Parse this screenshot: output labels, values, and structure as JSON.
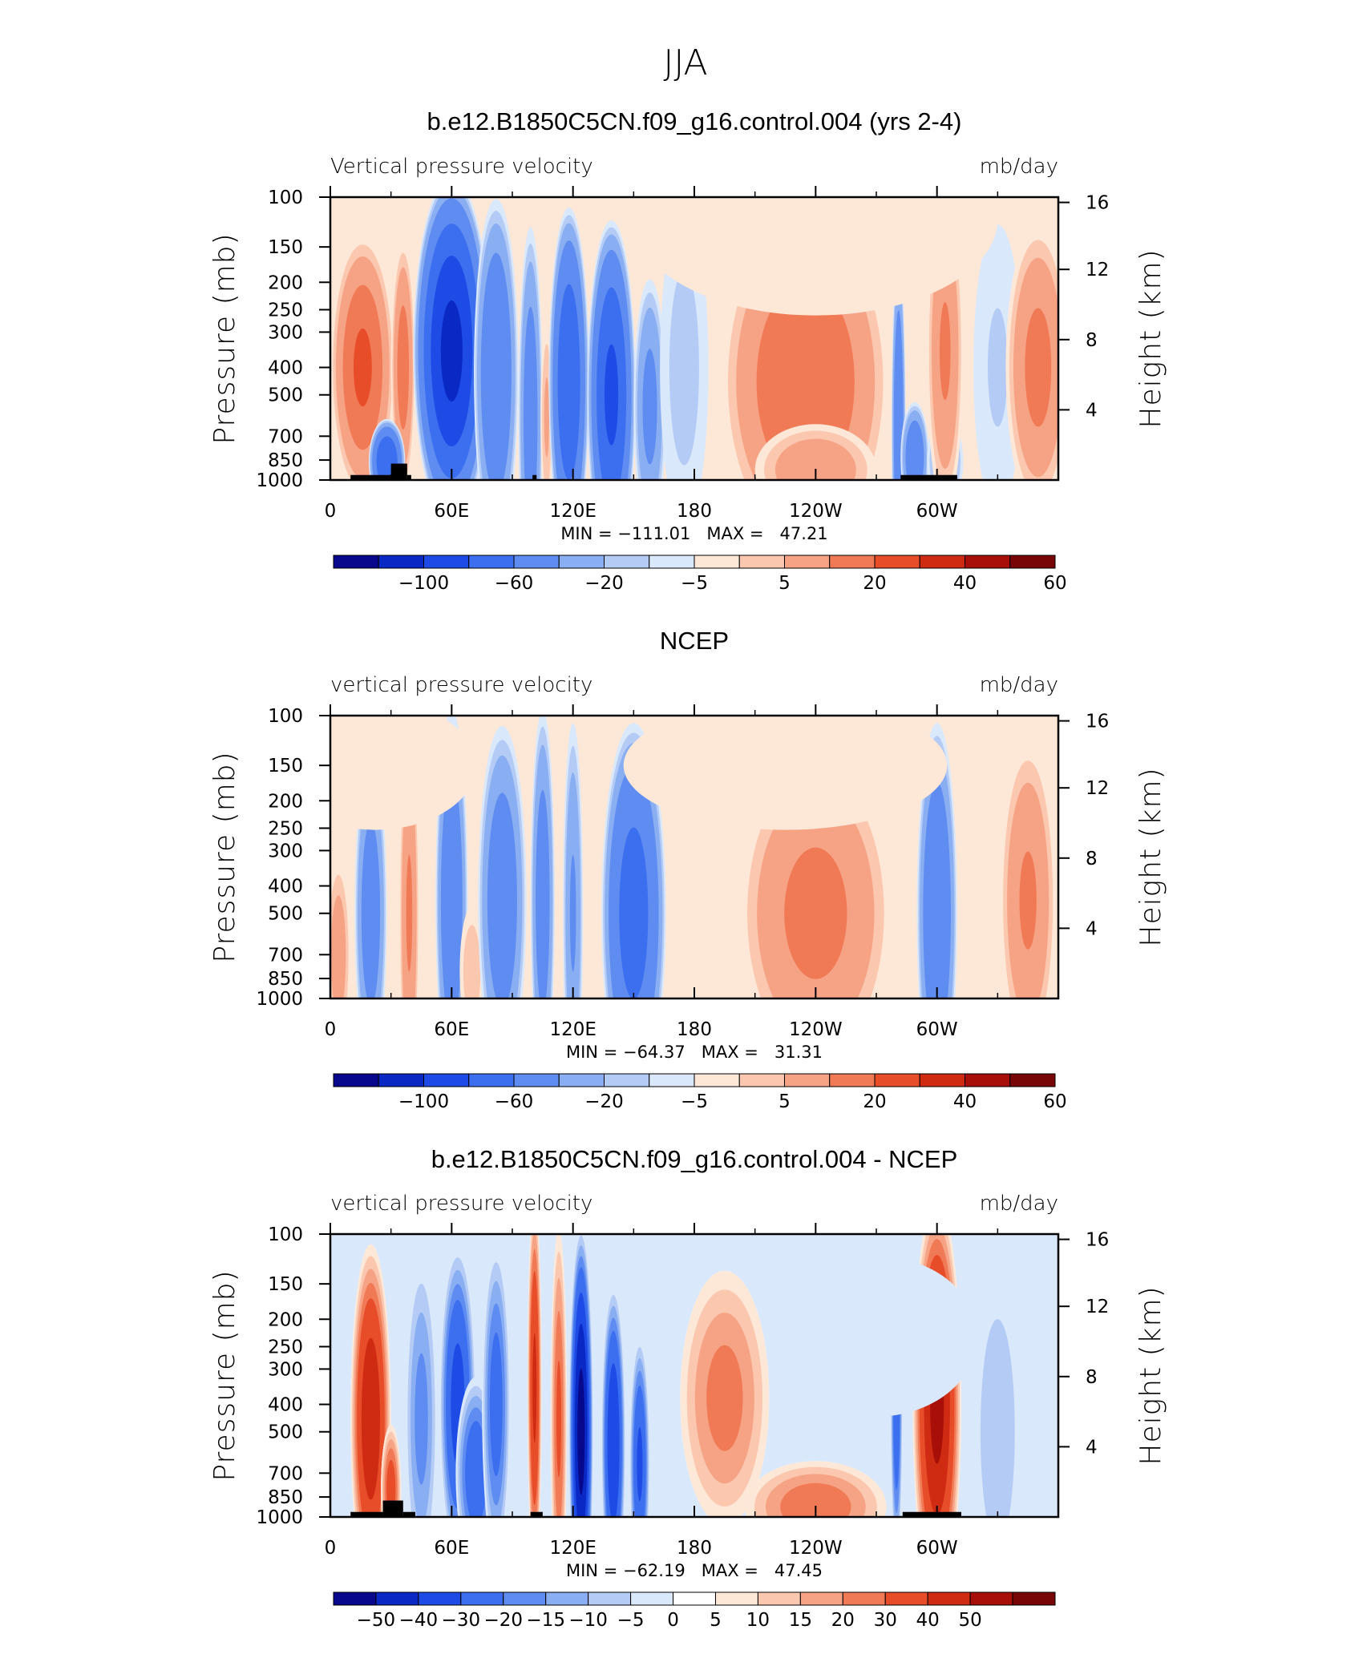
{
  "figure": {
    "title": "JJA",
    "colors": {
      "frame": "#000000",
      "background": "#ffffff",
      "topography": "#000000"
    }
  },
  "chart_data": [
    {
      "type": "heatmap",
      "title": "b.e12.B1850C5CN.f09_g16.control.004 (yrs 2-4)",
      "left_label": "Vertical pressure velocity",
      "right_label": "mb/day",
      "xlabel": "",
      "ylabel": "Pressure (mb)",
      "y2label": "Height (km)",
      "x_ticks": [
        "0",
        "60E",
        "120E",
        "180",
        "120W",
        "60W"
      ],
      "x_tick_lon": [
        0,
        60,
        120,
        180,
        240,
        300
      ],
      "xlim": [
        0,
        360
      ],
      "y_ticks": [
        "100",
        "150",
        "200",
        "250",
        "300",
        "400",
        "500",
        "700",
        "850",
        "1000"
      ],
      "y_tick_p": [
        100,
        150,
        200,
        250,
        300,
        400,
        500,
        700,
        850,
        1000
      ],
      "ylim": [
        1000,
        100
      ],
      "y2_ticks": [
        "4",
        "8",
        "12",
        "16"
      ],
      "y2_tick_km": [
        4,
        8,
        12,
        16
      ],
      "stats_text": "MIN = −111.01   MAX =   47.21",
      "min": -111.01,
      "max": 47.21,
      "levels": [
        -120,
        -100,
        -80,
        -60,
        -40,
        -20,
        -10,
        -5,
        0,
        5,
        10,
        20,
        30,
        40,
        50,
        60,
        70
      ],
      "cb_labels": [
        "−100",
        "−60",
        "−20",
        "−5",
        "5",
        "20",
        "40",
        "60"
      ],
      "cb_label_after_box": [
        1,
        3,
        5,
        7,
        9,
        11,
        13,
        15
      ],
      "topography": [
        [
          10,
          30,
          960
        ],
        [
          30,
          38,
          875
        ],
        [
          38,
          40,
          960
        ],
        [
          100,
          102,
          960
        ],
        [
          282,
          310,
          960
        ]
      ],
      "features": [
        {
          "lon": 16,
          "p": 400,
          "w": 16,
          "h": 4.2,
          "v": 32
        },
        {
          "lon": 36,
          "p": 400,
          "w": 6,
          "h": 4.0,
          "v": 26
        },
        {
          "lon": 28,
          "p": 860,
          "w": 9,
          "h": 1.3,
          "v": -60
        },
        {
          "lon": 60,
          "p": 350,
          "w": 19,
          "h": 5.5,
          "v": -85
        },
        {
          "lon": 82,
          "p": 420,
          "w": 11,
          "h": 5.5,
          "v": -38
        },
        {
          "lon": 99,
          "p": 600,
          "w": 6,
          "h": 6.0,
          "v": -30
        },
        {
          "lon": 107,
          "p": 600,
          "w": 3,
          "h": 3.0,
          "v": 12
        },
        {
          "lon": 118,
          "p": 450,
          "w": 10,
          "h": 5.5,
          "v": -58
        },
        {
          "lon": 139,
          "p": 500,
          "w": 12,
          "h": 5.5,
          "v": -64
        },
        {
          "lon": 158,
          "p": 550,
          "w": 8,
          "h": 4.0,
          "v": -25
        },
        {
          "lon": 175,
          "p": 400,
          "w": 12,
          "h": 5.0,
          "v": -8
        },
        {
          "lon": 235,
          "p": 450,
          "w": 42,
          "h": 5.5,
          "v": 30
        },
        {
          "lon": 240,
          "p": 920,
          "w": 30,
          "h": 1.4,
          "v": 18
        },
        {
          "lon": 281,
          "p": 650,
          "w": 3.5,
          "h": 5.5,
          "v": -36
        },
        {
          "lon": 289,
          "p": 830,
          "w": 7,
          "h": 1.7,
          "v": -35
        },
        {
          "lon": 304,
          "p": 860,
          "w": 9,
          "h": 1.4,
          "v": -18
        },
        {
          "lon": 304,
          "p": 350,
          "w": 9,
          "h": 5.0,
          "v": 22
        },
        {
          "lon": 330,
          "p": 400,
          "w": 12,
          "h": 4.5,
          "v": -6
        },
        {
          "lon": 350,
          "p": 400,
          "w": 16,
          "h": 4.5,
          "v": 24
        },
        {
          "lon": 240,
          "p": 120,
          "w": 90,
          "h": 3.0,
          "v": 4
        }
      ]
    },
    {
      "type": "heatmap",
      "title": "NCEP",
      "left_label": "vertical pressure velocity",
      "right_label": "mb/day",
      "xlabel": "",
      "ylabel": "Pressure (mb)",
      "y2label": "Height (km)",
      "x_ticks": [
        "0",
        "60E",
        "120E",
        "180",
        "120W",
        "60W"
      ],
      "x_tick_lon": [
        0,
        60,
        120,
        180,
        240,
        300
      ],
      "xlim": [
        0,
        360
      ],
      "y_ticks": [
        "100",
        "150",
        "200",
        "250",
        "300",
        "400",
        "500",
        "700",
        "850",
        "1000"
      ],
      "y_tick_p": [
        100,
        150,
        200,
        250,
        300,
        400,
        500,
        700,
        850,
        1000
      ],
      "ylim": [
        1000,
        100
      ],
      "y2_ticks": [
        "4",
        "8",
        "12",
        "16"
      ],
      "y2_tick_km": [
        4,
        8,
        12,
        16
      ],
      "stats_text": "MIN = −64.37   MAX =   31.31",
      "min": -64.37,
      "max": 31.31,
      "levels": [
        -120,
        -100,
        -80,
        -60,
        -40,
        -20,
        -10,
        -5,
        0,
        5,
        10,
        20,
        30,
        40,
        50,
        60,
        70
      ],
      "cb_labels": [
        "−100",
        "−60",
        "−20",
        "−5",
        "5",
        "20",
        "40",
        "60"
      ],
      "cb_label_after_box": [
        1,
        3,
        5,
        7,
        9,
        11,
        13,
        15
      ],
      "topography": [],
      "features": [
        {
          "lon": 4,
          "p": 700,
          "w": 6,
          "h": 3.0,
          "v": 16
        },
        {
          "lon": 20,
          "p": 500,
          "w": 8,
          "h": 5.0,
          "v": -30
        },
        {
          "lon": 39,
          "p": 500,
          "w": 5,
          "h": 6.0,
          "v": 22
        },
        {
          "lon": 60,
          "p": 450,
          "w": 8,
          "h": 6.0,
          "v": -36
        },
        {
          "lon": 70,
          "p": 800,
          "w": 6,
          "h": 2.0,
          "v": 10
        },
        {
          "lon": 85,
          "p": 450,
          "w": 12,
          "h": 5.5,
          "v": -32
        },
        {
          "lon": 105,
          "p": 450,
          "w": 6,
          "h": 6.0,
          "v": -30
        },
        {
          "lon": 120,
          "p": 500,
          "w": 5,
          "h": 6.0,
          "v": -22
        },
        {
          "lon": 150,
          "p": 500,
          "w": 16,
          "h": 6.0,
          "v": -50
        },
        {
          "lon": 240,
          "p": 500,
          "w": 38,
          "h": 5.0,
          "v": 24
        },
        {
          "lon": 300,
          "p": 500,
          "w": 10,
          "h": 6.0,
          "v": -38
        },
        {
          "lon": 345,
          "p": 450,
          "w": 14,
          "h": 5.0,
          "v": 22
        },
        {
          "lon": 22,
          "p": 150,
          "w": 50,
          "h": 2.0,
          "v": 5
        },
        {
          "lon": 225,
          "p": 150,
          "w": 80,
          "h": 2.0,
          "v": 5
        }
      ]
    },
    {
      "type": "heatmap",
      "title": "b.e12.B1850C5CN.f09_g16.control.004 - NCEP",
      "left_label": "vertical pressure velocity",
      "right_label": "mb/day",
      "xlabel": "",
      "ylabel": "Pressure (mb)",
      "y2label": "Height (km)",
      "x_ticks": [
        "0",
        "60E",
        "120E",
        "180",
        "120W",
        "60W"
      ],
      "x_tick_lon": [
        0,
        60,
        120,
        180,
        240,
        300
      ],
      "xlim": [
        0,
        360
      ],
      "y_ticks": [
        "100",
        "150",
        "200",
        "250",
        "300",
        "400",
        "500",
        "700",
        "850",
        "1000"
      ],
      "y_tick_p": [
        100,
        150,
        200,
        250,
        300,
        400,
        500,
        700,
        850,
        1000
      ],
      "ylim": [
        1000,
        100
      ],
      "y2_ticks": [
        "4",
        "8",
        "12",
        "16"
      ],
      "y2_tick_km": [
        4,
        8,
        12,
        16
      ],
      "stats_text": "MIN = −62.19   MAX =   47.45",
      "min": -62.19,
      "max": 47.45,
      "levels": [
        -60,
        -50,
        -40,
        -30,
        -20,
        -15,
        -10,
        -5,
        0,
        0.01,
        5,
        10,
        15,
        20,
        30,
        40,
        50,
        60
      ],
      "cb_labels": [
        "−50",
        "−40",
        "−30",
        "−20",
        "−15",
        "−10",
        "−5",
        "0",
        "5",
        "10",
        "15",
        "20",
        "30",
        "40",
        "50"
      ],
      "cb_label_after_box": [
        0,
        1,
        2,
        3,
        4,
        5,
        6,
        7,
        8,
        9,
        10,
        11,
        12,
        13,
        14
      ],
      "topography": [
        [
          10,
          26,
          960
        ],
        [
          26,
          36,
          875
        ],
        [
          36,
          42,
          960
        ],
        [
          99,
          105,
          960
        ],
        [
          283,
          312,
          960
        ]
      ],
      "features": [
        {
          "lon": 20,
          "p": 450,
          "w": 10,
          "h": 5.5,
          "v": 38
        },
        {
          "lon": 30,
          "p": 800,
          "w": 5,
          "h": 2.0,
          "v": 25
        },
        {
          "lon": 45,
          "p": 450,
          "w": 8,
          "h": 5.0,
          "v": -18
        },
        {
          "lon": 63,
          "p": 400,
          "w": 9,
          "h": 5.0,
          "v": -35
        },
        {
          "lon": 72,
          "p": 700,
          "w": 10,
          "h": 3.0,
          "v": -28
        },
        {
          "lon": 82,
          "p": 400,
          "w": 7,
          "h": 5.0,
          "v": -25
        },
        {
          "lon": 101,
          "p": 350,
          "w": 3.5,
          "h": 6.0,
          "v": 32
        },
        {
          "lon": 113,
          "p": 450,
          "w": 4,
          "h": 6.0,
          "v": 22
        },
        {
          "lon": 124,
          "p": 500,
          "w": 6,
          "h": 6.5,
          "v": -55
        },
        {
          "lon": 140,
          "p": 550,
          "w": 6,
          "h": 5.0,
          "v": -40
        },
        {
          "lon": 153,
          "p": 650,
          "w": 5,
          "h": 4.0,
          "v": -32
        },
        {
          "lon": 195,
          "p": 380,
          "w": 22,
          "h": 4.0,
          "v": 18
        },
        {
          "lon": 240,
          "p": 920,
          "w": 35,
          "h": 1.4,
          "v": 20
        },
        {
          "lon": 280,
          "p": 400,
          "w": 3,
          "h": 5.0,
          "v": -28
        },
        {
          "lon": 300,
          "p": 400,
          "w": 12,
          "h": 6.5,
          "v": 42
        },
        {
          "lon": 330,
          "p": 500,
          "w": 12,
          "h": 5.0,
          "v": -10
        },
        {
          "lon": 270,
          "p": 230,
          "w": 50,
          "h": 2.5,
          "v": -4
        }
      ]
    }
  ]
}
